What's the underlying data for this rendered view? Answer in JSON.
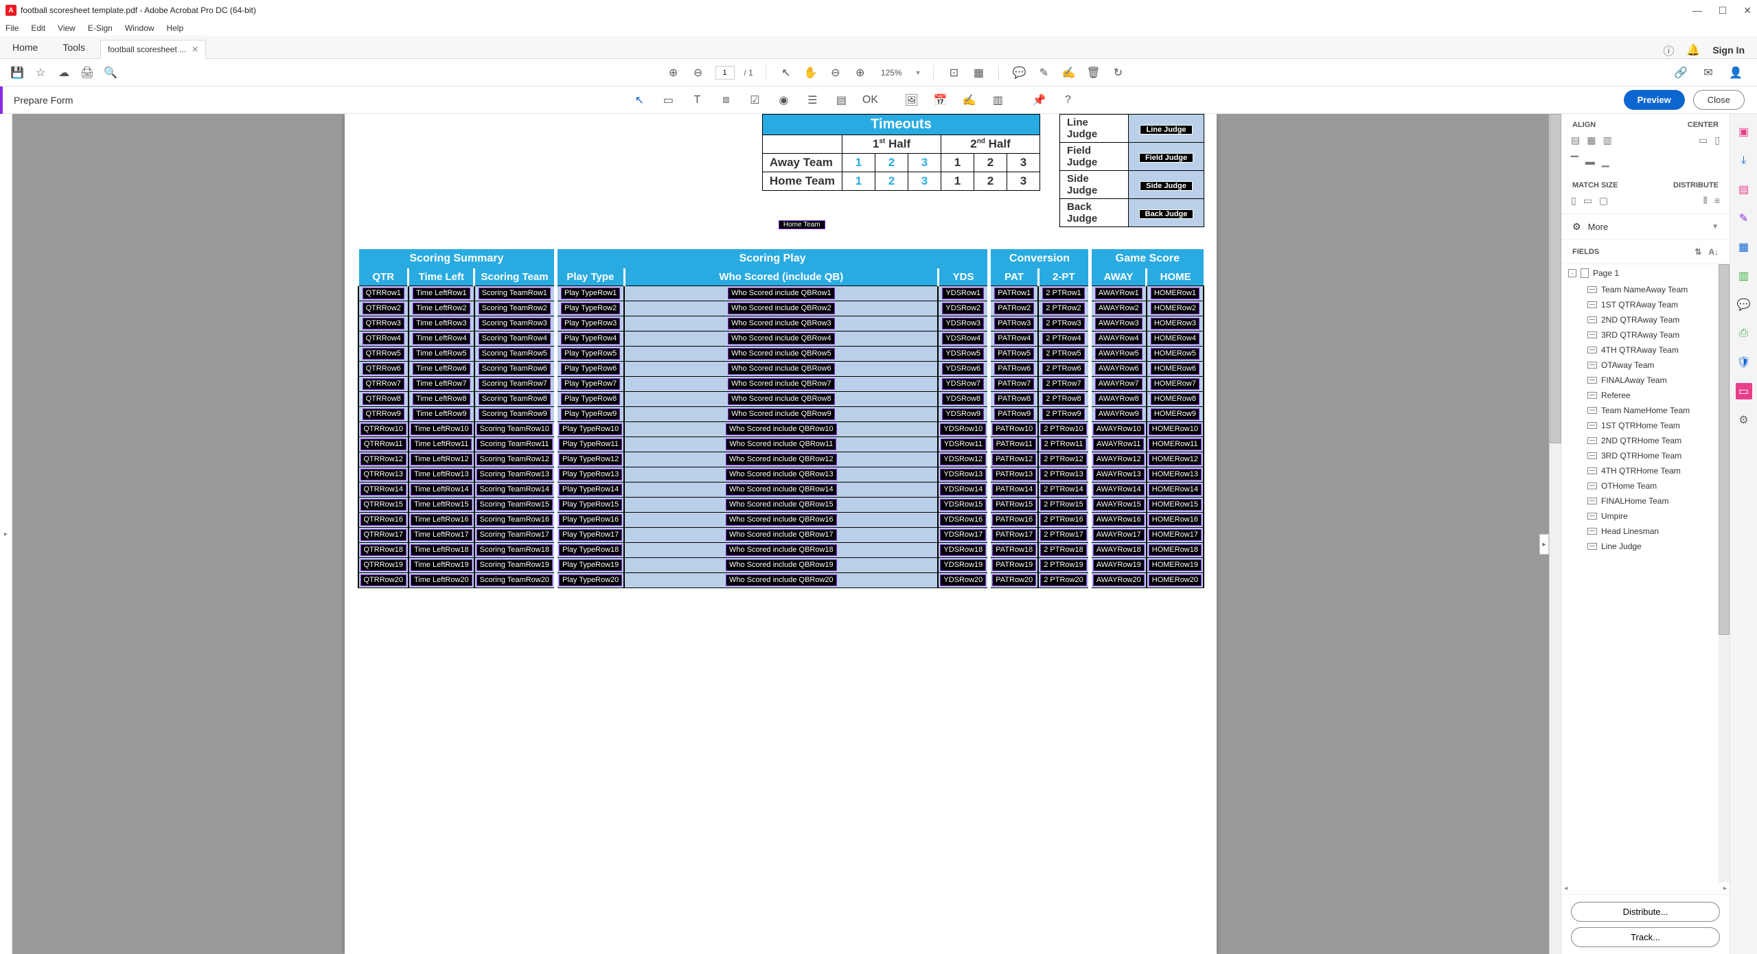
{
  "titlebar": {
    "text": "football scoresheet template.pdf - Adobe Acrobat Pro DC (64-bit)"
  },
  "menubar": [
    "File",
    "Edit",
    "View",
    "E-Sign",
    "Window",
    "Help"
  ],
  "tabs": {
    "home": "Home",
    "tools": "Tools",
    "doc": "football scoresheet ...",
    "signin": "Sign In"
  },
  "maintool": {
    "page_cur": "1",
    "page_total": "/ 1",
    "zoom": "125%"
  },
  "formbar": {
    "label": "Prepare Form",
    "preview": "Preview",
    "close": "Close"
  },
  "rightpanel": {
    "align": "ALIGN",
    "center": "CENTER",
    "match": "MATCH SIZE",
    "distribute": "DISTRIBUTE",
    "more": "More",
    "fields": "FIELDS",
    "page": "Page 1",
    "items": [
      "Team NameAway Team",
      "1ST QTRAway Team",
      "2ND QTRAway Team",
      "3RD QTRAway Team",
      "4TH QTRAway Team",
      "OTAway Team",
      "FINALAway Team",
      "Referee",
      "Team NameHome Team",
      "1ST QTRHome Team",
      "2ND QTRHome Team",
      "3RD QTRHome Team",
      "4TH QTRHome Team",
      "OTHome Team",
      "FINALHome Team",
      "Umpire",
      "Head Linesman",
      "Line Judge"
    ],
    "distribute_btn": "Distribute...",
    "track_btn": "Track..."
  },
  "pdf": {
    "timeouts": {
      "title": "Timeouts",
      "half1": "1",
      "half1_suffix": "st",
      "half_word": " Half",
      "half2": "2",
      "half2_suffix": "nd",
      "away": "Away Team",
      "home": "Home Team",
      "awayTeamLabel": "Away Team",
      "homeTeamLabel": "Home Team"
    },
    "numbers_blue": [
      "1",
      "2",
      "3"
    ],
    "numbers_black": [
      "1",
      "2",
      "3"
    ],
    "officials": [
      {
        "label": "Line Judge",
        "chip": "Line Judge"
      },
      {
        "label": "Field Judge",
        "chip": "Field Judge"
      },
      {
        "label": "Side Judge",
        "chip": "Side Judge"
      },
      {
        "label": "Back Judge",
        "chip": "Back Judge"
      }
    ],
    "scoring_headers": {
      "summary": "Scoring Summary",
      "play": "Scoring Play",
      "conv": "Conversion",
      "score": "Game Score",
      "qtr": "QTR",
      "time": "Time Left",
      "team": "Scoring Team",
      "ptype": "Play Type",
      "who": "Who Scored (include QB)",
      "yds": "YDS",
      "pat": "PAT",
      "twopt": "2-PT",
      "away": "AWAY",
      "home": "HOME"
    },
    "row_count": 20,
    "col_prefixes": {
      "qtr": "QTRRow",
      "time": "Time LeftRow",
      "team": "Scoring TeamRow",
      "ptype": "Play TypeRow",
      "who": "Who Scored include QBRow",
      "yds": "YDSRow",
      "pat": "PATRow",
      "twopt": "2 PTRow",
      "away": "AWAYRow",
      "home": "HOMERow"
    }
  }
}
